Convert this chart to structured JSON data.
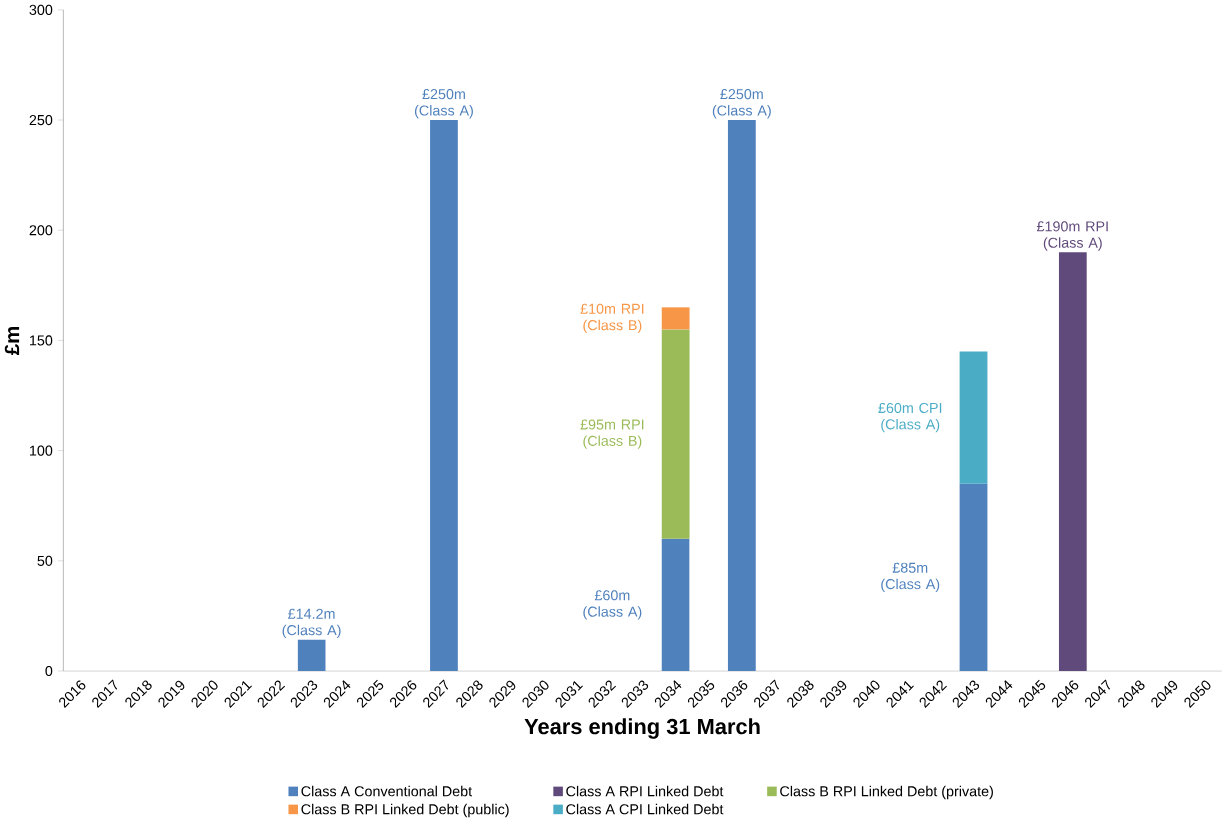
{
  "chart_data": {
    "type": "bar",
    "stacked": true,
    "xlabel": "Years ending 31 March",
    "ylabel": "£m",
    "categories": [
      "2016",
      "2017",
      "2018",
      "2019",
      "2020",
      "2021",
      "2022",
      "2023",
      "2024",
      "2025",
      "2026",
      "2027",
      "2028",
      "2029",
      "2030",
      "2031",
      "2032",
      "2033",
      "2034",
      "2035",
      "2036",
      "2037",
      "2038",
      "2039",
      "2040",
      "2041",
      "2042",
      "2043",
      "2044",
      "2045",
      "2046",
      "2047",
      "2048",
      "2049",
      "2050"
    ],
    "series": [
      {
        "name": "Class A Conventional Debt",
        "color": "#4f81bd",
        "values": [
          null,
          null,
          null,
          null,
          null,
          null,
          null,
          14.2,
          null,
          null,
          null,
          250,
          null,
          null,
          null,
          null,
          null,
          null,
          60,
          null,
          250,
          null,
          null,
          null,
          null,
          null,
          null,
          85,
          null,
          null,
          null,
          null,
          null,
          null,
          null
        ]
      },
      {
        "name": "Class A RPI Linked Debt",
        "color": "#604a7b",
        "values": [
          null,
          null,
          null,
          null,
          null,
          null,
          null,
          null,
          null,
          null,
          null,
          null,
          null,
          null,
          null,
          null,
          null,
          null,
          null,
          null,
          null,
          null,
          null,
          null,
          null,
          null,
          null,
          null,
          null,
          null,
          190,
          null,
          null,
          null,
          null
        ]
      },
      {
        "name": "Class B RPI Linked Debt (private)",
        "color": "#9bbb59",
        "values": [
          null,
          null,
          null,
          null,
          null,
          null,
          null,
          null,
          null,
          null,
          null,
          null,
          null,
          null,
          null,
          null,
          null,
          null,
          95,
          null,
          null,
          null,
          null,
          null,
          null,
          null,
          null,
          null,
          null,
          null,
          null,
          null,
          null,
          null,
          null
        ]
      },
      {
        "name": "Class B RPI Linked Debt (public)",
        "color": "#f79646",
        "values": [
          null,
          null,
          null,
          null,
          null,
          null,
          null,
          null,
          null,
          null,
          null,
          null,
          null,
          null,
          null,
          null,
          null,
          null,
          10,
          null,
          null,
          null,
          null,
          null,
          null,
          null,
          null,
          null,
          null,
          null,
          null,
          null,
          null,
          null,
          null
        ]
      },
      {
        "name": "Class A CPI Linked Debt",
        "color": "#4bacc6",
        "values": [
          null,
          null,
          null,
          null,
          null,
          null,
          null,
          null,
          null,
          null,
          null,
          null,
          null,
          null,
          null,
          null,
          null,
          null,
          null,
          null,
          null,
          null,
          null,
          null,
          null,
          null,
          null,
          60,
          null,
          null,
          null,
          null,
          null,
          null,
          null
        ]
      }
    ],
    "ylim": [
      0,
      300
    ],
    "yticks": [
      0,
      50,
      100,
      150,
      200,
      250,
      300
    ],
    "grid": false,
    "legend": "bottom",
    "annotations": [
      {
        "text": "£14.2m (Class A)",
        "x": "2023",
        "y": 14.2
      },
      {
        "text": "£250m (Class A)",
        "x": "2027",
        "y": 250
      },
      {
        "text": "£250m (Class A)",
        "x": "2036",
        "y": 250
      },
      "£60m (Class A)",
      "£95m RPI (Class B)",
      "£10m RPI (Class B)",
      "£85m (Class A)",
      "£60m CPI (Class A)",
      {
        "text": "£190m RPI (Class A)",
        "x": "2046",
        "y": 190
      }
    ]
  }
}
